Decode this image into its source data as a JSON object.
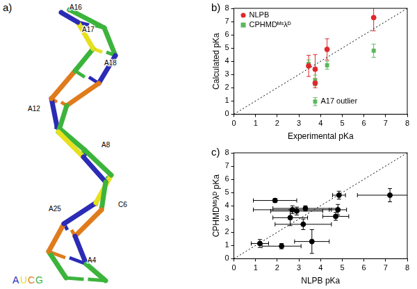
{
  "structure": {
    "title": "a)",
    "residue_labels": [
      "A16",
      "A17",
      "A18",
      "A12",
      "A8",
      "C6",
      "A25",
      "A4"
    ],
    "legend": [
      {
        "text": "A",
        "color": "#2b2bb5"
      },
      {
        "text": "U",
        "color": "#e6e01e"
      },
      {
        "text": "C",
        "color": "#e07b1c"
      },
      {
        "text": "G",
        "color": "#3cb43c"
      }
    ]
  },
  "chart_data": [
    {
      "type": "scatter",
      "title": "b)",
      "x_label": "Experimental pKa",
      "y_label": "Calculated pKa",
      "xlim": [
        0,
        8
      ],
      "ylim": [
        0,
        8
      ],
      "xticks": [
        0,
        1,
        2,
        3,
        4,
        5,
        6,
        7,
        8
      ],
      "yticks": [
        0,
        1,
        2,
        3,
        4,
        5,
        6,
        7,
        8
      ],
      "grid": false,
      "legend": "upper left",
      "series": [
        {
          "type": "line",
          "line_style": "dotted",
          "color": "#000000",
          "x": [
            0,
            8
          ],
          "values": [
            0,
            8
          ]
        },
        {
          "name": "NLPB",
          "color": "#e0282e",
          "marker": "circle",
          "x": [
            3.45,
            3.75,
            3.75,
            4.3,
            6.45
          ],
          "values": [
            3.65,
            3.4,
            2.35,
            4.9,
            7.3
          ],
          "y_errors": [
            0.8,
            1.1,
            0.35,
            0.8,
            1.0
          ]
        },
        {
          "name": "CPHMDᴹˢλᴰ",
          "color": "#5cb85c",
          "marker": "square",
          "x": [
            3.45,
            3.75,
            3.75,
            4.3,
            6.45
          ],
          "values": [
            3.8,
            2.55,
            0.95,
            3.7,
            4.8
          ],
          "y_errors": [
            0.3,
            0.4,
            0.3,
            0.3,
            0.5
          ]
        }
      ],
      "annotations": [
        {
          "text": "A17 outlier",
          "x": 3.75,
          "y": 0.95
        }
      ]
    },
    {
      "type": "scatter",
      "title": "c)",
      "x_label": "NLPB pKa",
      "y_label": "CPHMDᴹˢλᴰ pKa",
      "xlim": [
        0,
        8
      ],
      "ylim": [
        0,
        8
      ],
      "xticks": [
        0,
        1,
        2,
        3,
        4,
        5,
        6,
        7,
        8
      ],
      "yticks": [
        0,
        1,
        2,
        3,
        4,
        5,
        6,
        7,
        8
      ],
      "grid": false,
      "series": [
        {
          "type": "line",
          "line_style": "dotted",
          "color": "#000000",
          "x": [
            0,
            8
          ],
          "values": [
            0,
            8
          ]
        },
        {
          "color": "#000000",
          "marker": "circle",
          "x": [
            1.9,
            2.7,
            3.3,
            2.6,
            3.2,
            4.7,
            4.8,
            4.85,
            7.2,
            1.2,
            2.2,
            3.6,
            2.9
          ],
          "values": [
            4.4,
            3.7,
            3.8,
            3.1,
            2.6,
            3.2,
            3.7,
            4.8,
            4.8,
            1.15,
            0.95,
            1.3,
            3.6
          ],
          "x_errors": [
            1.0,
            1.8,
            1.5,
            0.8,
            1.3,
            0.6,
            0.4,
            0.3,
            1.5,
            0.4,
            0.9,
            0.8,
            1.2
          ],
          "y_errors": [
            0.15,
            0.3,
            0.2,
            0.6,
            0.4,
            0.3,
            0.4,
            0.3,
            0.5,
            0.3,
            0.2,
            0.9,
            0.3
          ]
        }
      ]
    }
  ]
}
